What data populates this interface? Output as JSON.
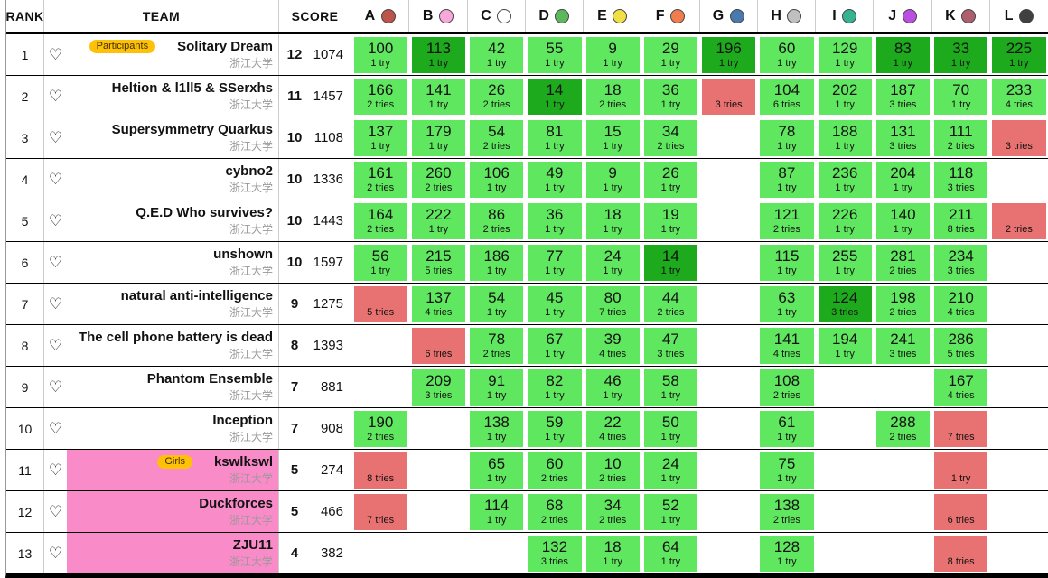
{
  "header": {
    "rank_label": "RANK",
    "team_label": "TEAM",
    "score_label": "SCORE",
    "problems": [
      {
        "letter": "A",
        "balloon_color": "#bc544b"
      },
      {
        "letter": "B",
        "balloon_color": "#f9a9d9"
      },
      {
        "letter": "C",
        "balloon_color": "#ffffff"
      },
      {
        "letter": "D",
        "balloon_color": "#5cb85c"
      },
      {
        "letter": "E",
        "balloon_color": "#f0e046"
      },
      {
        "letter": "F",
        "balloon_color": "#f07d4e"
      },
      {
        "letter": "G",
        "balloon_color": "#4a79ad"
      },
      {
        "letter": "H",
        "balloon_color": "#c0c0c0"
      },
      {
        "letter": "I",
        "balloon_color": "#35b392"
      },
      {
        "letter": "J",
        "balloon_color": "#bb4fe3"
      },
      {
        "letter": "K",
        "balloon_color": "#ad5f6d"
      },
      {
        "letter": "L",
        "balloon_color": "#404040"
      }
    ]
  },
  "colors": {
    "correct_bg": "#60e760",
    "first_solve_bg": "#1daa1d",
    "incorrect_bg": "#e87272",
    "girls_row_bg": "#f98bc8",
    "badge_bg": "#ffc107",
    "badge_text": "#3c3000"
  },
  "favorite_icon": "♡",
  "rows": [
    {
      "rank": "1",
      "badge": "Participants",
      "team": "Solitary Dream",
      "affiliation": "浙江大学",
      "solved": "12",
      "penalty": "1074",
      "highlight": false,
      "cells": [
        {
          "time": "100",
          "tries": "1 try",
          "state": "correct"
        },
        {
          "time": "113",
          "tries": "1 try",
          "state": "first"
        },
        {
          "time": "42",
          "tries": "1 try",
          "state": "correct"
        },
        {
          "time": "55",
          "tries": "1 try",
          "state": "correct"
        },
        {
          "time": "9",
          "tries": "1 try",
          "state": "correct"
        },
        {
          "time": "29",
          "tries": "1 try",
          "state": "correct"
        },
        {
          "time": "196",
          "tries": "1 try",
          "state": "first"
        },
        {
          "time": "60",
          "tries": "1 try",
          "state": "correct"
        },
        {
          "time": "129",
          "tries": "1 try",
          "state": "correct"
        },
        {
          "time": "83",
          "tries": "1 try",
          "state": "first"
        },
        {
          "time": "33",
          "tries": "1 try",
          "state": "first"
        },
        {
          "time": "225",
          "tries": "1 try",
          "state": "first"
        }
      ]
    },
    {
      "rank": "2",
      "badge": "",
      "team": "Heltion & l1ll5 & SSerxhs",
      "affiliation": "浙江大学",
      "solved": "11",
      "penalty": "1457",
      "highlight": false,
      "cells": [
        {
          "time": "166",
          "tries": "2 tries",
          "state": "correct"
        },
        {
          "time": "141",
          "tries": "1 try",
          "state": "correct"
        },
        {
          "time": "26",
          "tries": "2 tries",
          "state": "correct"
        },
        {
          "time": "14",
          "tries": "1 try",
          "state": "first"
        },
        {
          "time": "18",
          "tries": "2 tries",
          "state": "correct"
        },
        {
          "time": "36",
          "tries": "1 try",
          "state": "correct"
        },
        {
          "time": "",
          "tries": "3 tries",
          "state": "incorrect"
        },
        {
          "time": "104",
          "tries": "6 tries",
          "state": "correct"
        },
        {
          "time": "202",
          "tries": "1 try",
          "state": "correct"
        },
        {
          "time": "187",
          "tries": "3 tries",
          "state": "correct"
        },
        {
          "time": "70",
          "tries": "1 try",
          "state": "correct"
        },
        {
          "time": "233",
          "tries": "4 tries",
          "state": "correct"
        }
      ]
    },
    {
      "rank": "3",
      "badge": "",
      "team": "Supersymmetry Quarkus",
      "affiliation": "浙江大学",
      "solved": "10",
      "penalty": "1108",
      "highlight": false,
      "cells": [
        {
          "time": "137",
          "tries": "1 try",
          "state": "correct"
        },
        {
          "time": "179",
          "tries": "1 try",
          "state": "correct"
        },
        {
          "time": "54",
          "tries": "2 tries",
          "state": "correct"
        },
        {
          "time": "81",
          "tries": "1 try",
          "state": "correct"
        },
        {
          "time": "15",
          "tries": "1 try",
          "state": "correct"
        },
        {
          "time": "34",
          "tries": "2 tries",
          "state": "correct"
        },
        {
          "state": "none"
        },
        {
          "time": "78",
          "tries": "1 try",
          "state": "correct"
        },
        {
          "time": "188",
          "tries": "1 try",
          "state": "correct"
        },
        {
          "time": "131",
          "tries": "3 tries",
          "state": "correct"
        },
        {
          "time": "111",
          "tries": "2 tries",
          "state": "correct"
        },
        {
          "time": "",
          "tries": "3 tries",
          "state": "incorrect"
        }
      ]
    },
    {
      "rank": "4",
      "badge": "",
      "team": "cybno2",
      "affiliation": "浙江大学",
      "solved": "10",
      "penalty": "1336",
      "highlight": false,
      "cells": [
        {
          "time": "161",
          "tries": "2 tries",
          "state": "correct"
        },
        {
          "time": "260",
          "tries": "2 tries",
          "state": "correct"
        },
        {
          "time": "106",
          "tries": "1 try",
          "state": "correct"
        },
        {
          "time": "49",
          "tries": "1 try",
          "state": "correct"
        },
        {
          "time": "9",
          "tries": "1 try",
          "state": "correct"
        },
        {
          "time": "26",
          "tries": "1 try",
          "state": "correct"
        },
        {
          "state": "none"
        },
        {
          "time": "87",
          "tries": "1 try",
          "state": "correct"
        },
        {
          "time": "236",
          "tries": "1 try",
          "state": "correct"
        },
        {
          "time": "204",
          "tries": "1 try",
          "state": "correct"
        },
        {
          "time": "118",
          "tries": "3 tries",
          "state": "correct"
        },
        {
          "state": "none"
        }
      ]
    },
    {
      "rank": "5",
      "badge": "",
      "team": "Q.E.D Who survives?",
      "affiliation": "浙江大学",
      "solved": "10",
      "penalty": "1443",
      "highlight": false,
      "cells": [
        {
          "time": "164",
          "tries": "2 tries",
          "state": "correct"
        },
        {
          "time": "222",
          "tries": "1 try",
          "state": "correct"
        },
        {
          "time": "86",
          "tries": "2 tries",
          "state": "correct"
        },
        {
          "time": "36",
          "tries": "1 try",
          "state": "correct"
        },
        {
          "time": "18",
          "tries": "1 try",
          "state": "correct"
        },
        {
          "time": "19",
          "tries": "1 try",
          "state": "correct"
        },
        {
          "state": "none"
        },
        {
          "time": "121",
          "tries": "2 tries",
          "state": "correct"
        },
        {
          "time": "226",
          "tries": "1 try",
          "state": "correct"
        },
        {
          "time": "140",
          "tries": "1 try",
          "state": "correct"
        },
        {
          "time": "211",
          "tries": "8 tries",
          "state": "correct"
        },
        {
          "time": "",
          "tries": "2 tries",
          "state": "incorrect"
        }
      ]
    },
    {
      "rank": "6",
      "badge": "",
      "team": "unshown",
      "affiliation": "浙江大学",
      "solved": "10",
      "penalty": "1597",
      "highlight": false,
      "cells": [
        {
          "time": "56",
          "tries": "1 try",
          "state": "correct"
        },
        {
          "time": "215",
          "tries": "5 tries",
          "state": "correct"
        },
        {
          "time": "186",
          "tries": "1 try",
          "state": "correct"
        },
        {
          "time": "77",
          "tries": "1 try",
          "state": "correct"
        },
        {
          "time": "24",
          "tries": "1 try",
          "state": "correct"
        },
        {
          "time": "14",
          "tries": "1 try",
          "state": "first"
        },
        {
          "state": "none"
        },
        {
          "time": "115",
          "tries": "1 try",
          "state": "correct"
        },
        {
          "time": "255",
          "tries": "1 try",
          "state": "correct"
        },
        {
          "time": "281",
          "tries": "2 tries",
          "state": "correct"
        },
        {
          "time": "234",
          "tries": "3 tries",
          "state": "correct"
        },
        {
          "state": "none"
        }
      ]
    },
    {
      "rank": "7",
      "badge": "",
      "team": "natural anti-intelligence",
      "affiliation": "浙江大学",
      "solved": "9",
      "penalty": "1275",
      "highlight": false,
      "cells": [
        {
          "time": "",
          "tries": "5 tries",
          "state": "incorrect"
        },
        {
          "time": "137",
          "tries": "4 tries",
          "state": "correct"
        },
        {
          "time": "54",
          "tries": "1 try",
          "state": "correct"
        },
        {
          "time": "45",
          "tries": "1 try",
          "state": "correct"
        },
        {
          "time": "80",
          "tries": "7 tries",
          "state": "correct"
        },
        {
          "time": "44",
          "tries": "2 tries",
          "state": "correct"
        },
        {
          "state": "none"
        },
        {
          "time": "63",
          "tries": "1 try",
          "state": "correct"
        },
        {
          "time": "124",
          "tries": "3 tries",
          "state": "first"
        },
        {
          "time": "198",
          "tries": "2 tries",
          "state": "correct"
        },
        {
          "time": "210",
          "tries": "4 tries",
          "state": "correct"
        },
        {
          "state": "none"
        }
      ]
    },
    {
      "rank": "8",
      "badge": "",
      "team": "The cell phone battery is dead",
      "affiliation": "浙江大学",
      "solved": "8",
      "penalty": "1393",
      "highlight": false,
      "cells": [
        {
          "state": "none"
        },
        {
          "time": "",
          "tries": "6 tries",
          "state": "incorrect"
        },
        {
          "time": "78",
          "tries": "2 tries",
          "state": "correct"
        },
        {
          "time": "67",
          "tries": "1 try",
          "state": "correct"
        },
        {
          "time": "39",
          "tries": "4 tries",
          "state": "correct"
        },
        {
          "time": "47",
          "tries": "3 tries",
          "state": "correct"
        },
        {
          "state": "none"
        },
        {
          "time": "141",
          "tries": "4 tries",
          "state": "correct"
        },
        {
          "time": "194",
          "tries": "1 try",
          "state": "correct"
        },
        {
          "time": "241",
          "tries": "3 tries",
          "state": "correct"
        },
        {
          "time": "286",
          "tries": "5 tries",
          "state": "correct"
        },
        {
          "state": "none"
        }
      ]
    },
    {
      "rank": "9",
      "badge": "",
      "team": "Phantom Ensemble",
      "affiliation": "浙江大学",
      "solved": "7",
      "penalty": "881",
      "highlight": false,
      "cells": [
        {
          "state": "none"
        },
        {
          "time": "209",
          "tries": "3 tries",
          "state": "correct"
        },
        {
          "time": "91",
          "tries": "1 try",
          "state": "correct"
        },
        {
          "time": "82",
          "tries": "1 try",
          "state": "correct"
        },
        {
          "time": "46",
          "tries": "1 try",
          "state": "correct"
        },
        {
          "time": "58",
          "tries": "1 try",
          "state": "correct"
        },
        {
          "state": "none"
        },
        {
          "time": "108",
          "tries": "2 tries",
          "state": "correct"
        },
        {
          "state": "none"
        },
        {
          "state": "none"
        },
        {
          "time": "167",
          "tries": "4 tries",
          "state": "correct"
        },
        {
          "state": "none"
        }
      ]
    },
    {
      "rank": "10",
      "badge": "",
      "team": "Inception",
      "affiliation": "浙江大学",
      "solved": "7",
      "penalty": "908",
      "highlight": false,
      "cells": [
        {
          "time": "190",
          "tries": "2 tries",
          "state": "correct"
        },
        {
          "state": "none"
        },
        {
          "time": "138",
          "tries": "1 try",
          "state": "correct"
        },
        {
          "time": "59",
          "tries": "1 try",
          "state": "correct"
        },
        {
          "time": "22",
          "tries": "4 tries",
          "state": "correct"
        },
        {
          "time": "50",
          "tries": "1 try",
          "state": "correct"
        },
        {
          "state": "none"
        },
        {
          "time": "61",
          "tries": "1 try",
          "state": "correct"
        },
        {
          "state": "none"
        },
        {
          "time": "288",
          "tries": "2 tries",
          "state": "correct"
        },
        {
          "time": "",
          "tries": "7 tries",
          "state": "incorrect"
        },
        {
          "state": "none"
        }
      ]
    },
    {
      "rank": "11",
      "badge": "Girls",
      "team": "kswlkswl",
      "affiliation": "浙江大学",
      "solved": "5",
      "penalty": "274",
      "highlight": true,
      "cells": [
        {
          "time": "",
          "tries": "8 tries",
          "state": "incorrect"
        },
        {
          "state": "none"
        },
        {
          "time": "65",
          "tries": "1 try",
          "state": "correct"
        },
        {
          "time": "60",
          "tries": "2 tries",
          "state": "correct"
        },
        {
          "time": "10",
          "tries": "2 tries",
          "state": "correct"
        },
        {
          "time": "24",
          "tries": "1 try",
          "state": "correct"
        },
        {
          "state": "none"
        },
        {
          "time": "75",
          "tries": "1 try",
          "state": "correct"
        },
        {
          "state": "none"
        },
        {
          "state": "none"
        },
        {
          "time": "",
          "tries": "1 try",
          "state": "incorrect"
        },
        {
          "state": "none"
        }
      ]
    },
    {
      "rank": "12",
      "badge": "",
      "team": "Duckforces",
      "affiliation": "浙江大学",
      "solved": "5",
      "penalty": "466",
      "highlight": true,
      "cells": [
        {
          "time": "",
          "tries": "7 tries",
          "state": "incorrect"
        },
        {
          "state": "none"
        },
        {
          "time": "114",
          "tries": "1 try",
          "state": "correct"
        },
        {
          "time": "68",
          "tries": "2 tries",
          "state": "correct"
        },
        {
          "time": "34",
          "tries": "2 tries",
          "state": "correct"
        },
        {
          "time": "52",
          "tries": "1 try",
          "state": "correct"
        },
        {
          "state": "none"
        },
        {
          "time": "138",
          "tries": "2 tries",
          "state": "correct"
        },
        {
          "state": "none"
        },
        {
          "state": "none"
        },
        {
          "time": "",
          "tries": "6 tries",
          "state": "incorrect"
        },
        {
          "state": "none"
        }
      ]
    },
    {
      "rank": "13",
      "badge": "",
      "team": "ZJU11",
      "affiliation": "浙江大学",
      "solved": "4",
      "penalty": "382",
      "highlight": true,
      "cells": [
        {
          "state": "none"
        },
        {
          "state": "none"
        },
        {
          "state": "none"
        },
        {
          "time": "132",
          "tries": "3 tries",
          "state": "correct"
        },
        {
          "time": "18",
          "tries": "1 try",
          "state": "correct"
        },
        {
          "time": "64",
          "tries": "1 try",
          "state": "correct"
        },
        {
          "state": "none"
        },
        {
          "time": "128",
          "tries": "1 try",
          "state": "correct"
        },
        {
          "state": "none"
        },
        {
          "state": "none"
        },
        {
          "time": "",
          "tries": "8 tries",
          "state": "incorrect"
        },
        {
          "state": "none"
        }
      ]
    }
  ]
}
